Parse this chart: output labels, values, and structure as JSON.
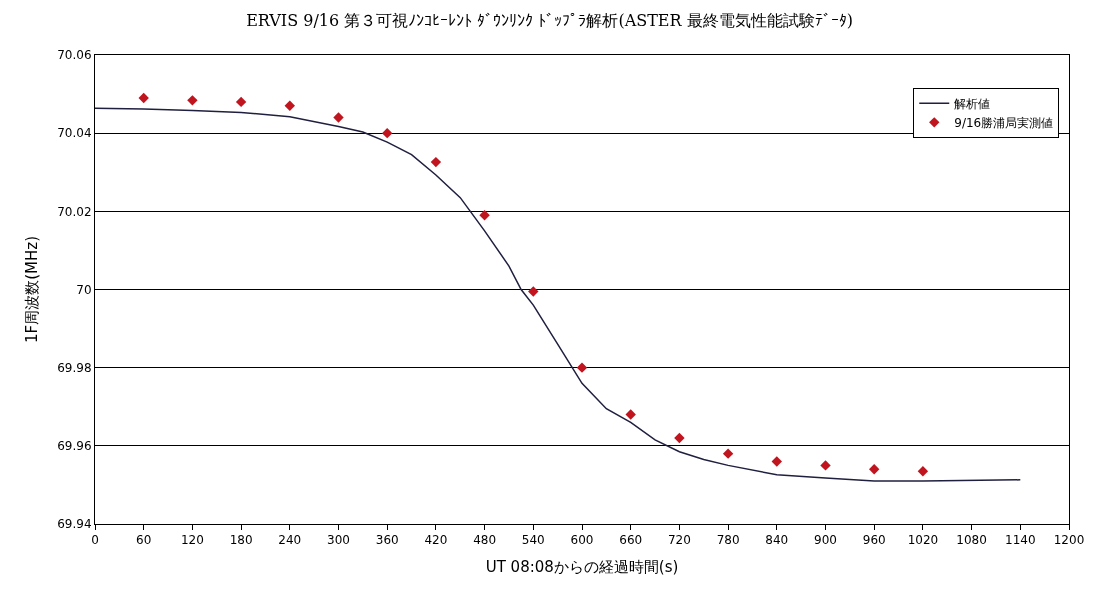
{
  "chart_data": {
    "type": "line",
    "title": "ERVIS 9/16 第３可視ﾉﾝｺﾋｰﾚﾝﾄ ﾀﾞｳﾝﾘﾝｸ ﾄﾞｯﾌﾟﾗ解析(ASTER 最終電気性能試験ﾃﾞｰﾀ)",
    "xlabel": "UT 08:08からの経過時間(s)",
    "ylabel": "1F周波数(MHz)",
    "xlim": [
      0,
      1200
    ],
    "xticks": [
      0,
      60,
      120,
      180,
      240,
      300,
      360,
      420,
      480,
      540,
      600,
      660,
      720,
      780,
      840,
      900,
      960,
      1020,
      1080,
      1140,
      1200
    ],
    "ylim": [
      69.94,
      70.06
    ],
    "yticks": [
      69.94,
      69.96,
      69.98,
      70,
      70.02,
      70.04,
      70.06
    ],
    "grid": "y",
    "legend": "top right",
    "series": [
      {
        "name": "解析値",
        "color": "#1f1f40",
        "marker": "none",
        "line_style": "solid",
        "x": [
          0,
          60,
          120,
          180,
          240,
          300,
          330,
          360,
          390,
          420,
          450,
          480,
          510,
          525,
          540,
          570,
          600,
          630,
          660,
          690,
          720,
          750,
          780,
          840,
          900,
          960,
          1020,
          1140
        ],
        "values": [
          70.0464,
          70.0462,
          70.0458,
          70.0453,
          70.0442,
          70.0417,
          70.0403,
          70.0377,
          70.0345,
          70.0293,
          70.0235,
          70.015,
          70.006,
          70.0,
          69.996,
          69.986,
          69.976,
          69.9695,
          69.966,
          69.9615,
          69.9585,
          69.9565,
          69.955,
          69.9526,
          69.9518,
          69.951,
          69.951,
          69.9513
        ]
      },
      {
        "name": "9/16勝浦局実測値",
        "type": "scatter",
        "color": "#c0141e",
        "marker": "diamond",
        "x": [
          60,
          120,
          180,
          240,
          300,
          360,
          420,
          480,
          540,
          600,
          660,
          720,
          780,
          840,
          900,
          960,
          1020
        ],
        "values": [
          70.049,
          70.0484,
          70.048,
          70.047,
          70.044,
          70.04,
          70.0326,
          70.019,
          69.9995,
          69.98,
          69.968,
          69.962,
          69.958,
          69.956,
          69.955,
          69.954,
          69.9535
        ]
      }
    ]
  }
}
